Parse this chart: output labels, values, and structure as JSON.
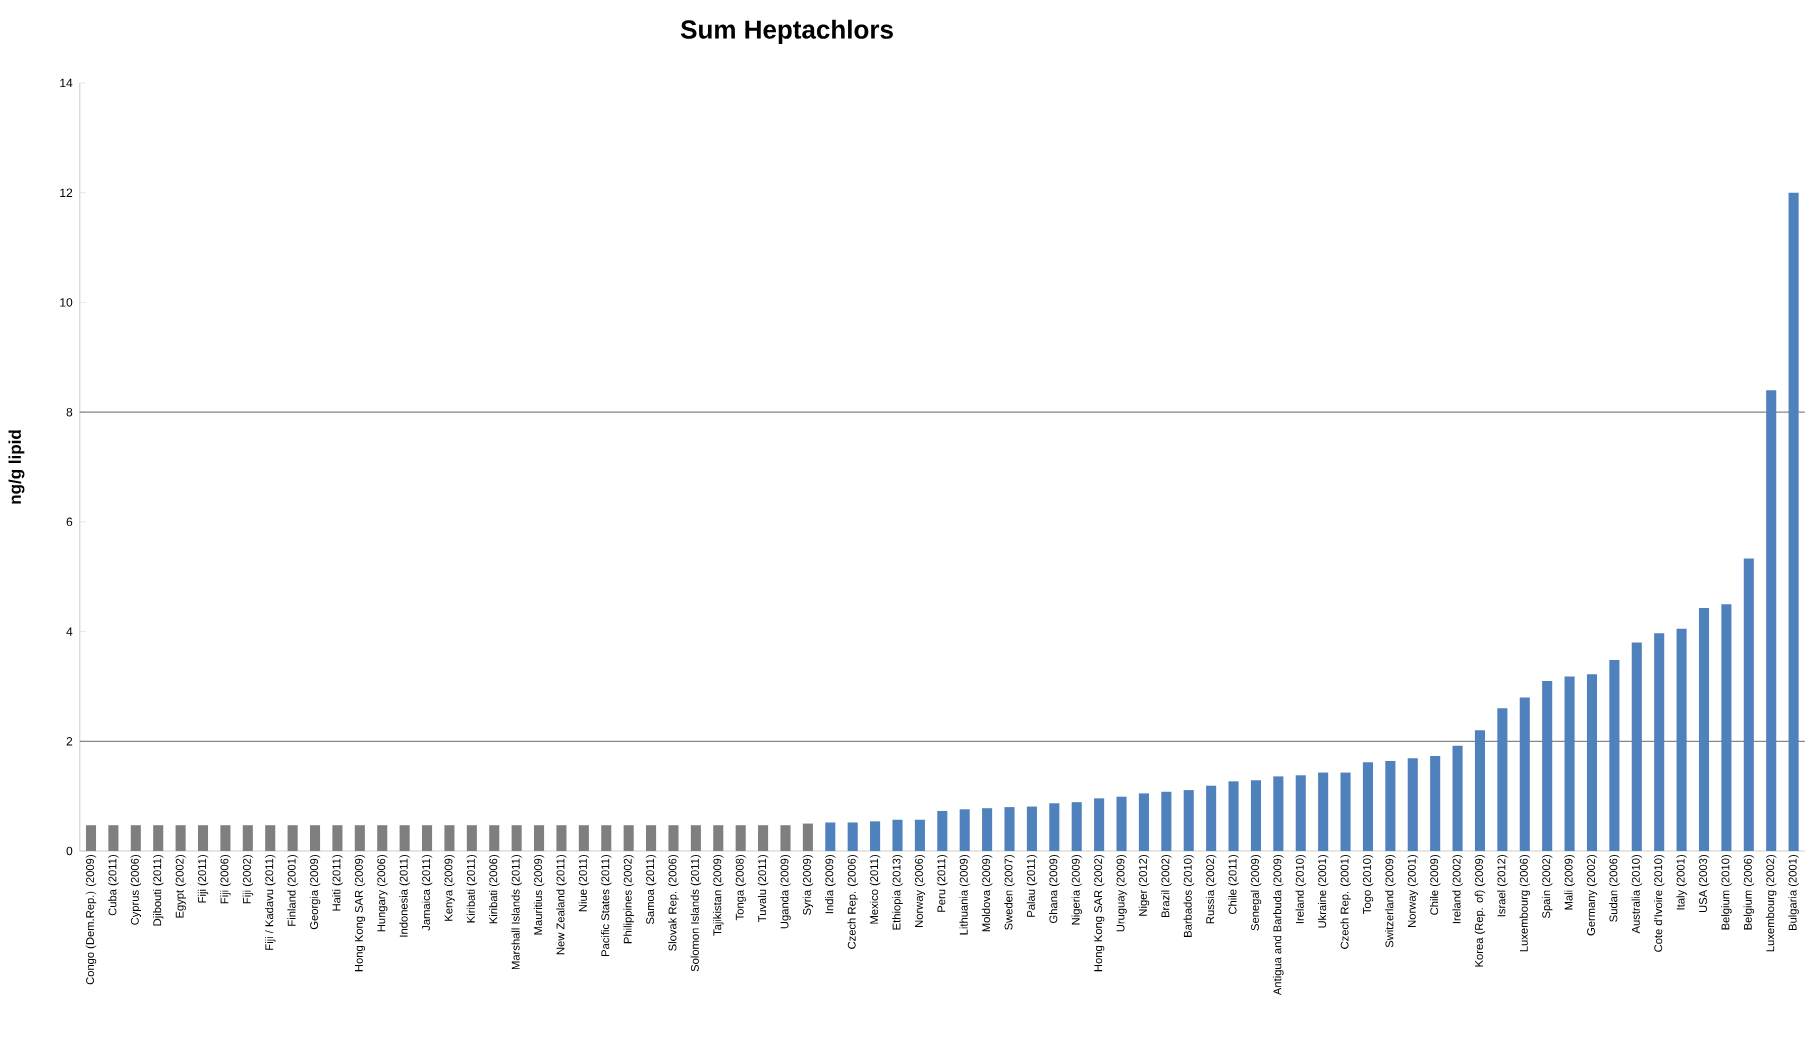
{
  "chart_data": {
    "type": "bar",
    "title": "Sum Heptachlors",
    "ylabel": "ng/g lipid",
    "categories": [
      "Congo (Dem.Rep.) (2009)",
      "Cuba (2011)",
      "Cyprus (2006)",
      "Djibouti (2011)",
      "Egypt (2002)",
      "Fiji (2011)",
      "Fiji (2006)",
      "Fiji (2002)",
      "Fiji / Kadavu (2011)",
      "Finland (2001)",
      "Georgia (2009)",
      "Haiti (2011)",
      "Hong Kong SAR (2009)",
      "Hungary (2006)",
      "Indonesia (2011)",
      "Jamaica (2011)",
      "Kenya (2009)",
      "Kiribati (2011)",
      "Kiribati (2006)",
      "Marshall Islands (2011)",
      "Mauritius (2009)",
      "New Zealand (2011)",
      "Niue (2011)",
      "Pacific States (2011)",
      "Philippines (2002)",
      "Samoa (2011)",
      "Slovak Rep. (2006)",
      "Solomon Islands (2011)",
      "Tajikistan (2009)",
      "Tonga (2008)",
      "Tuvalu (2011)",
      "Uganda (2009)",
      "Syria (2009)",
      "India (2009)",
      "Czech Rep. (2006)",
      "Mexico (2011)",
      "Ethiopia (2013)",
      "Norway (2006)",
      "Peru (2011)",
      "Lithuania (2009)",
      "Moldova (2009)",
      "Sweden (2007)",
      "Palau (2011)",
      "Ghana (2009)",
      "Nigeria (2009)",
      "Hong Kong SAR (2002)",
      "Uruguay (2009)",
      "Niger (2012)",
      "Brazil (2002)",
      "Barbados (2010)",
      "Russia (2002)",
      "Chile (2011)",
      "Senegal (2009)",
      "Antigua and Barbuda (2009)",
      "Ireland (2010)",
      "Ukraine (2001)",
      "Czech Rep. (2001)",
      "Togo (2010)",
      "Switzerland (2009)",
      "Norway (2001)",
      "Chile (2009)",
      "Ireland (2002)",
      "Korea (Rep. of) (2009)",
      "Israel (2012)",
      "Luxembourg (2006)",
      "Spain (2002)",
      "Mali (2009)",
      "Germany (2002)",
      "Sudan (2006)",
      "Australia (2010)",
      "Cote d'Ivoire (2010)",
      "Italy (2001)",
      "USA (2003)",
      "Belgium (2010)",
      "Belgium (2006)",
      "Luxembourg (2002)",
      "Bulgaria (2001)"
    ],
    "values": [
      0.47,
      0.47,
      0.47,
      0.47,
      0.47,
      0.47,
      0.47,
      0.47,
      0.47,
      0.47,
      0.47,
      0.47,
      0.47,
      0.47,
      0.47,
      0.47,
      0.47,
      0.47,
      0.47,
      0.47,
      0.47,
      0.47,
      0.47,
      0.47,
      0.47,
      0.47,
      0.47,
      0.47,
      0.47,
      0.47,
      0.47,
      0.47,
      0.5,
      0.52,
      0.52,
      0.54,
      0.57,
      0.57,
      0.73,
      0.76,
      0.78,
      0.8,
      0.81,
      0.87,
      0.89,
      0.96,
      0.99,
      1.05,
      1.08,
      1.11,
      1.19,
      1.27,
      1.29,
      1.36,
      1.38,
      1.43,
      1.43,
      1.62,
      1.64,
      1.69,
      1.73,
      1.92,
      2.2,
      2.6,
      2.8,
      3.1,
      3.18,
      3.22,
      3.48,
      3.8,
      3.97,
      4.05,
      4.43,
      4.5,
      5.33,
      8.4,
      12.0
    ],
    "colors": [
      "#7f7f7f",
      "#7f7f7f",
      "#7f7f7f",
      "#7f7f7f",
      "#7f7f7f",
      "#7f7f7f",
      "#7f7f7f",
      "#7f7f7f",
      "#7f7f7f",
      "#7f7f7f",
      "#7f7f7f",
      "#7f7f7f",
      "#7f7f7f",
      "#7f7f7f",
      "#7f7f7f",
      "#7f7f7f",
      "#7f7f7f",
      "#7f7f7f",
      "#7f7f7f",
      "#7f7f7f",
      "#7f7f7f",
      "#7f7f7f",
      "#7f7f7f",
      "#7f7f7f",
      "#7f7f7f",
      "#7f7f7f",
      "#7f7f7f",
      "#7f7f7f",
      "#7f7f7f",
      "#7f7f7f",
      "#7f7f7f",
      "#7f7f7f",
      "#7f7f7f",
      "#4f81bd",
      "#4f81bd",
      "#4f81bd",
      "#4f81bd",
      "#4f81bd",
      "#4f81bd",
      "#4f81bd",
      "#4f81bd",
      "#4f81bd",
      "#4f81bd",
      "#4f81bd",
      "#4f81bd",
      "#4f81bd",
      "#4f81bd",
      "#4f81bd",
      "#4f81bd",
      "#4f81bd",
      "#4f81bd",
      "#4f81bd",
      "#4f81bd",
      "#4f81bd",
      "#4f81bd",
      "#4f81bd",
      "#4f81bd",
      "#4f81bd",
      "#4f81bd",
      "#4f81bd",
      "#4f81bd",
      "#4f81bd",
      "#4f81bd",
      "#4f81bd",
      "#4f81bd",
      "#4f81bd",
      "#4f81bd",
      "#4f81bd",
      "#4f81bd",
      "#4f81bd",
      "#4f81bd",
      "#4f81bd",
      "#4f81bd",
      "#4f81bd",
      "#4f81bd",
      "#4f81bd",
      "#4f81bd"
    ],
    "ylim": [
      0,
      14
    ],
    "yticks": [
      0,
      2,
      4,
      6,
      8,
      10,
      12,
      14
    ],
    "ref_lines": [
      {
        "axis": "y",
        "value": 2,
        "color": "#868686"
      },
      {
        "axis": "y",
        "value": 8,
        "color": "#868686"
      }
    ]
  }
}
